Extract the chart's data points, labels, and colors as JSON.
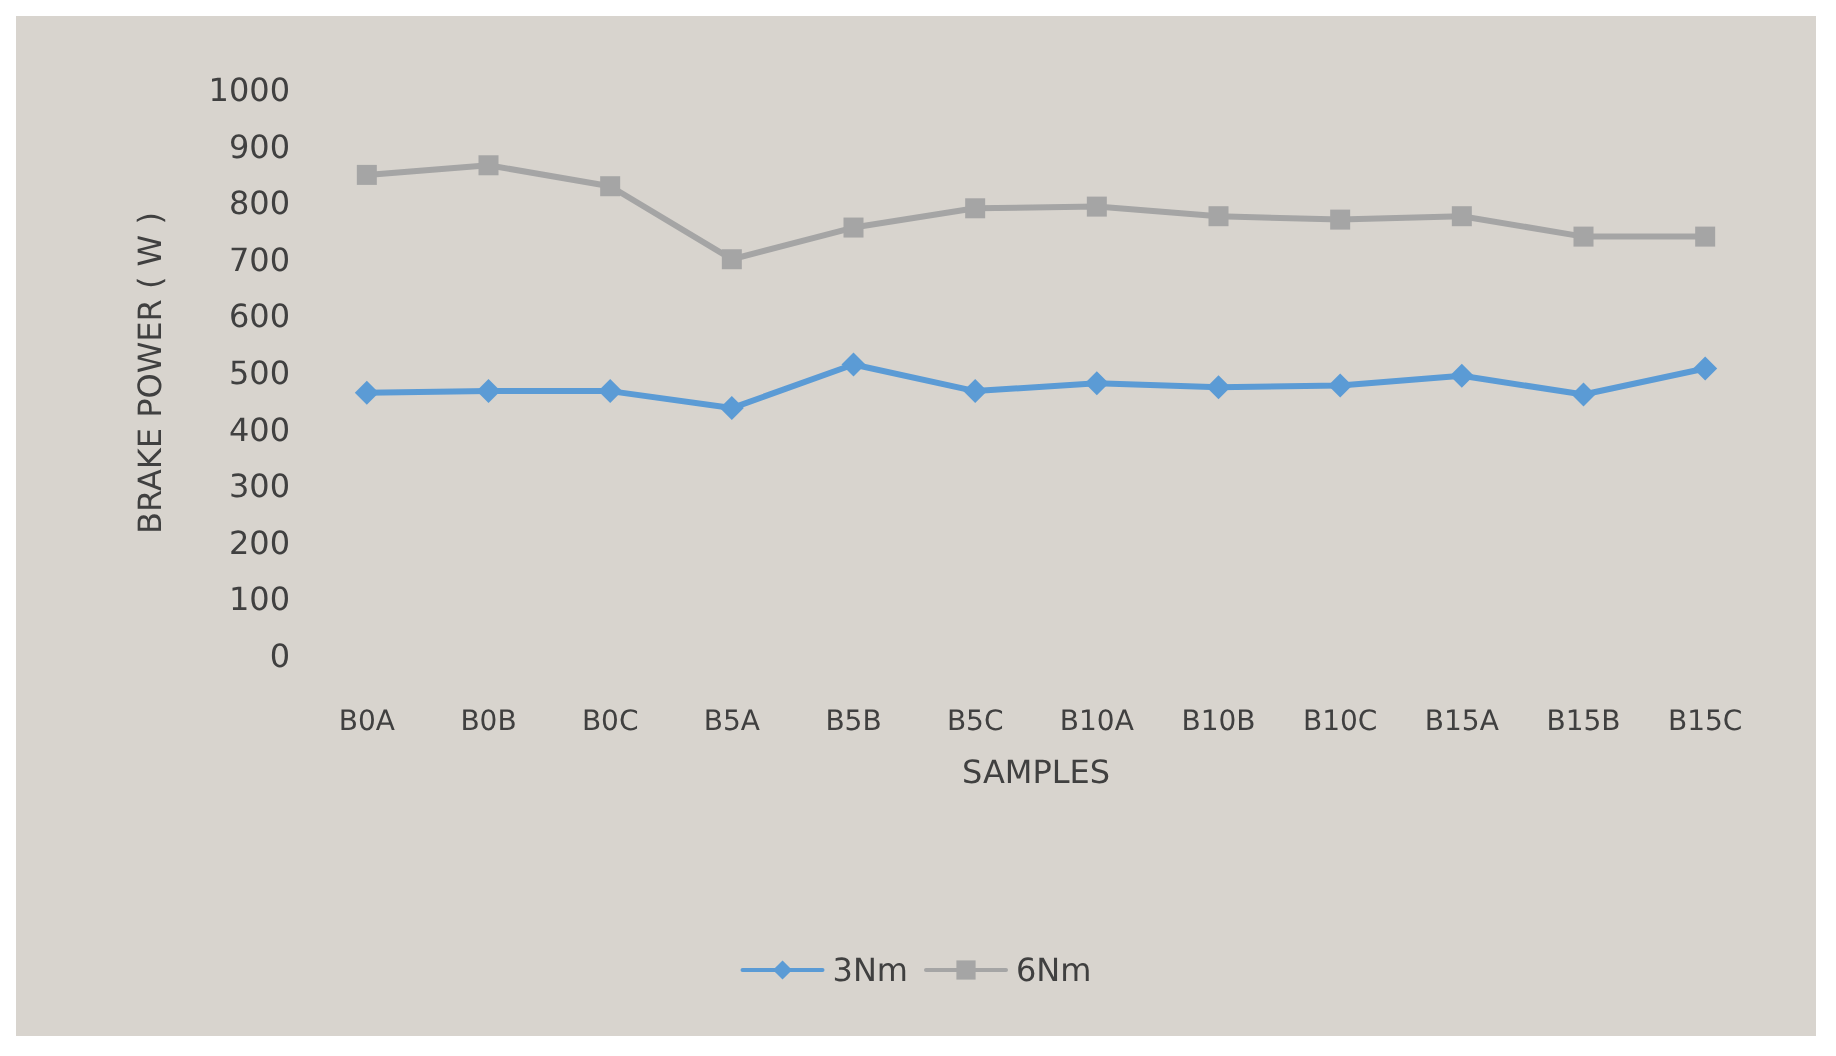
{
  "chart_data": {
    "type": "line",
    "xlabel": "SAMPLES",
    "ylabel": "BRAKE POWER ( W )",
    "categories": [
      "B0A",
      "B0B",
      "B0C",
      "B5A",
      "B5B",
      "B5C",
      "B10A",
      "B10B",
      "B10C",
      "B15A",
      "B15B",
      "B15C"
    ],
    "series": [
      {
        "name": "3Nm",
        "color": "#5b9bd5",
        "marker": "diamond",
        "values": [
          465,
          468,
          468,
          438,
          515,
          468,
          482,
          475,
          478,
          495,
          462,
          508
        ]
      },
      {
        "name": "6Nm",
        "color": "#a5a5a5",
        "marker": "square",
        "values": [
          850,
          867,
          830,
          701,
          757,
          791,
          794,
          777,
          771,
          777,
          741,
          741
        ]
      }
    ],
    "ylim": [
      0,
      1000
    ],
    "yticks": [
      0,
      100,
      200,
      300,
      400,
      500,
      600,
      700,
      800,
      900,
      1000
    ],
    "grid": false,
    "legend": "bottom"
  }
}
